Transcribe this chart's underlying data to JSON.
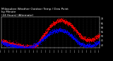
{
  "title": "Milwaukee Weather Outdoor Temp / Dew Point by Minute (24 Hours) (Alternate)",
  "title_line1": "Milwaukee Weather Outdoor Temp / Dew Point",
  "title_line2": "by Minute",
  "title_line3": "(24 Hours) (Alternate)",
  "title_fontsize": 3.0,
  "bg_color": "#000000",
  "text_color": "#ffffff",
  "grid_color": "#444444",
  "temp_color": "#ff0000",
  "dew_color": "#0000ff",
  "ylim": [
    37,
    72
  ],
  "xlim": [
    0,
    1440
  ],
  "yticks": [
    40,
    45,
    50,
    55,
    60,
    65,
    70
  ],
  "xticks": [
    0,
    60,
    120,
    180,
    240,
    300,
    360,
    420,
    480,
    540,
    600,
    660,
    720,
    780,
    840,
    900,
    960,
    1020,
    1080,
    1140,
    1200,
    1260,
    1320,
    1380,
    1440
  ],
  "xtick_labels": [
    "0:00",
    "1:00",
    "2:00",
    "3:00",
    "4:00",
    "5:00",
    "6:00",
    "7:00",
    "8:00",
    "9:00",
    "10:0",
    "11:0",
    "12:0",
    "13:0",
    "14:0",
    "15:0",
    "16:0",
    "17:0",
    "18:0",
    "19:0",
    "20:0",
    "21:0",
    "22:0",
    "23:0",
    "0:00"
  ],
  "temp_control_x": [
    0,
    60,
    120,
    180,
    240,
    300,
    360,
    420,
    480,
    540,
    600,
    660,
    720,
    780,
    840,
    900,
    960,
    1020,
    1080,
    1140,
    1200,
    1260,
    1320,
    1380,
    1440
  ],
  "temp_control_y": [
    45,
    44,
    42,
    41,
    40,
    39,
    38,
    38,
    38,
    42,
    49,
    55,
    62,
    65,
    68,
    68,
    66,
    63,
    58,
    52,
    48,
    46,
    46,
    48,
    51
  ],
  "dew_control_x": [
    0,
    60,
    120,
    180,
    240,
    300,
    360,
    420,
    480,
    540,
    600,
    660,
    720,
    780,
    840,
    900,
    960,
    1020,
    1080,
    1140,
    1200,
    1260,
    1320,
    1380,
    1440
  ],
  "dew_control_y": [
    43,
    41,
    40,
    39,
    38,
    37,
    37,
    37,
    39,
    42,
    46,
    50,
    54,
    56,
    57,
    57,
    55,
    51,
    47,
    42,
    40,
    39,
    39,
    41,
    44
  ]
}
